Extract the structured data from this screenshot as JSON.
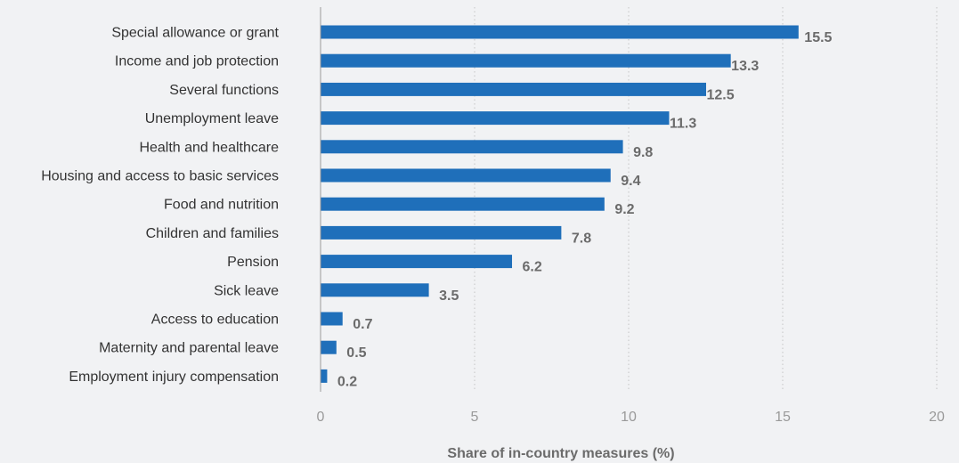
{
  "chart_data": {
    "type": "bar",
    "orientation": "horizontal",
    "categories": [
      "Special allowance or grant",
      "Income and job protection",
      "Several functions",
      "Unemployment leave",
      "Health and healthcare",
      "Housing and access to basic services",
      "Food and nutrition",
      "Children and families",
      "Pension",
      "Sick leave",
      "Access to education",
      "Maternity and parental leave",
      "Employment injury compensation"
    ],
    "values": [
      15.5,
      13.3,
      12.5,
      11.3,
      9.8,
      9.4,
      9.2,
      7.8,
      6.2,
      3.5,
      0.7,
      0.5,
      0.2
    ],
    "value_labels": [
      "15.5",
      "13.3",
      "12.5",
      "11.3",
      "9.8",
      "9.4",
      "9.2",
      "7.8",
      "6.2",
      "3.5",
      "0.7",
      "0.5",
      "0.2"
    ],
    "title": "",
    "xlabel": "Share of in-country measures (%)",
    "ylabel": "",
    "xlim": [
      0,
      20
    ],
    "xticks": [
      0,
      5,
      10,
      15,
      20
    ],
    "xtick_labels": [
      "0",
      "5",
      "10",
      "15",
      "20"
    ],
    "grid": "vertical-dotted",
    "legend": "none",
    "bar_color": "#1f6fba",
    "background_color": "#f1f2f4"
  }
}
